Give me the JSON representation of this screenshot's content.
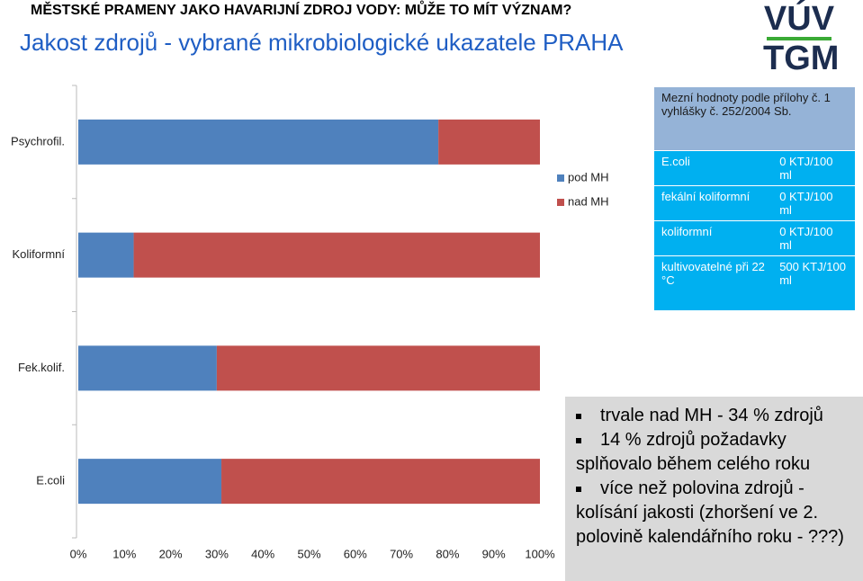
{
  "header": {
    "kicker": "MĚSTSKÉ PRAMENY JAKO HAVARIJNÍ ZDROJ VODY: MŮŽE TO MÍT VÝZNAM?",
    "title": "Jakost zdrojů - vybrané mikrobiologické ukazatele PRAHA"
  },
  "logo": {
    "line1": "VÚV",
    "line2": "TGM"
  },
  "chart_data": {
    "type": "bar",
    "orientation": "horizontal",
    "stacked": true,
    "categories": [
      "Psychrofil.",
      "Koliformní",
      "Fek.kolif.",
      "E.coli"
    ],
    "series": [
      {
        "name": "pod MH",
        "color": "#4f81bd",
        "values": [
          78,
          12,
          30,
          31
        ]
      },
      {
        "name": "nad MH",
        "color": "#c0504d",
        "values": [
          22,
          88,
          70,
          69
        ]
      }
    ],
    "xlim": [
      0,
      100
    ],
    "xticks": [
      {
        "value": 0,
        "label": "0%"
      },
      {
        "value": 10,
        "label": "10%"
      },
      {
        "value": 20,
        "label": "20%"
      },
      {
        "value": 30,
        "label": "30%"
      },
      {
        "value": 40,
        "label": "40%"
      },
      {
        "value": 50,
        "label": "50%"
      },
      {
        "value": 60,
        "label": "60%"
      },
      {
        "value": 70,
        "label": "70%"
      },
      {
        "value": 80,
        "label": "80%"
      },
      {
        "value": 90,
        "label": "90%"
      },
      {
        "value": 100,
        "label": "100%"
      }
    ]
  },
  "table": {
    "header": "Mezní hodnoty podle přílohy č. 1 vyhlášky č. 252/2004 Sb.",
    "rows": [
      [
        "E.coli",
        "0 KTJ/100 ml"
      ],
      [
        "fekální koliformní",
        "0 KTJ/100 ml"
      ],
      [
        "koliformní",
        "0 KTJ/100 ml"
      ],
      [
        "kultivovatelné při 22 °C",
        "500 KTJ/100 ml"
      ]
    ]
  },
  "notes": [
    "trvale nad MH - 34 % zdrojů",
    "14 % zdrojů požadavky splňovalo během celého roku",
    "více než polovina zdrojů - kolísání jakosti (zhoršení ve 2. polovině kalendářního roku - ???)"
  ]
}
